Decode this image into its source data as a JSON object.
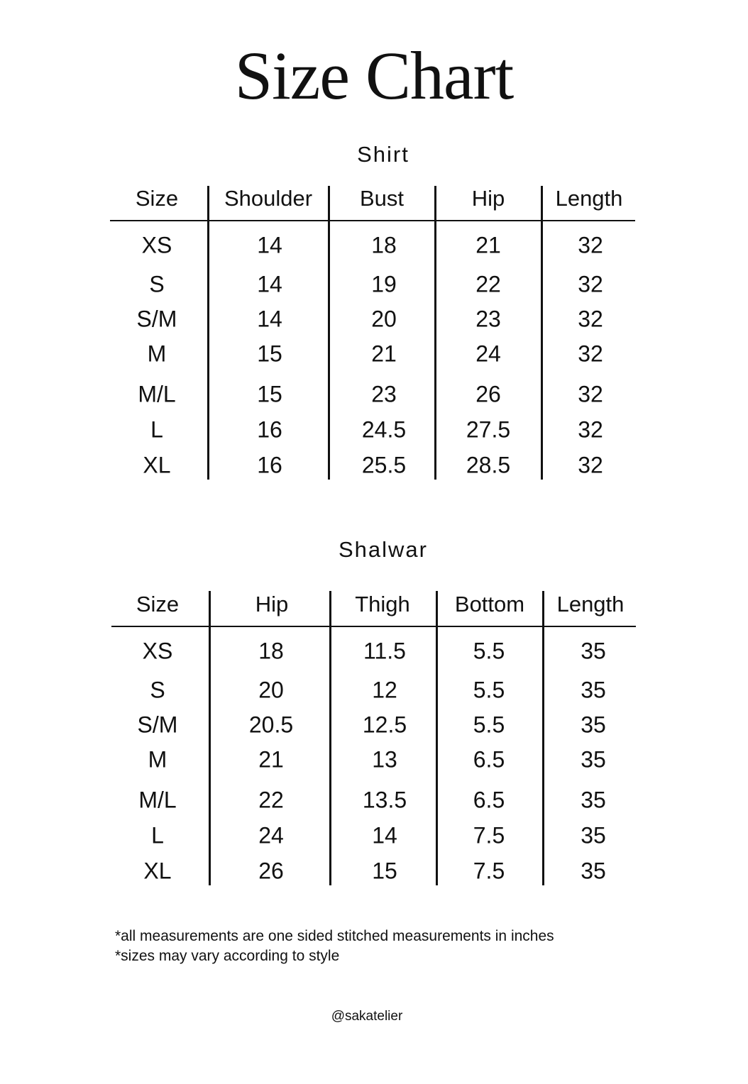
{
  "title": "Size Chart",
  "tables": [
    {
      "title": "Shirt",
      "headers": [
        "Size",
        "Shoulder",
        "Bust",
        "Hip",
        "Length"
      ],
      "rows": [
        [
          "XS",
          "14",
          "18",
          "21",
          "32"
        ],
        [
          "S",
          "14",
          "19",
          "22",
          "32"
        ],
        [
          "S/M",
          "14",
          "20",
          "23",
          "32"
        ],
        [
          "M",
          "15",
          "21",
          "24",
          "32"
        ],
        [
          "M/L",
          "15",
          "23",
          "26",
          "32"
        ],
        [
          "L",
          "16",
          "24.5",
          "27.5",
          "32"
        ],
        [
          "XL",
          "16",
          "25.5",
          "28.5",
          "32"
        ]
      ]
    },
    {
      "title": "Shalwar",
      "headers": [
        "Size",
        "Hip",
        "Thigh",
        "Bottom",
        "Length"
      ],
      "rows": [
        [
          "XS",
          "18",
          "11.5",
          "5.5",
          "35"
        ],
        [
          "S",
          "20",
          "12",
          "5.5",
          "35"
        ],
        [
          "S/M",
          "20.5",
          "12.5",
          "5.5",
          "35"
        ],
        [
          "M",
          "21",
          "13",
          "6.5",
          "35"
        ],
        [
          "M/L",
          "22",
          "13.5",
          "6.5",
          "35"
        ],
        [
          "L",
          "24",
          "14",
          "7.5",
          "35"
        ],
        [
          "XL",
          "26",
          "15",
          "7.5",
          "35"
        ]
      ]
    }
  ],
  "notes": [
    "*all measurements are one sided stitched measurements in inches",
    "*sizes may vary according to style"
  ],
  "handle": "@sakatelier"
}
